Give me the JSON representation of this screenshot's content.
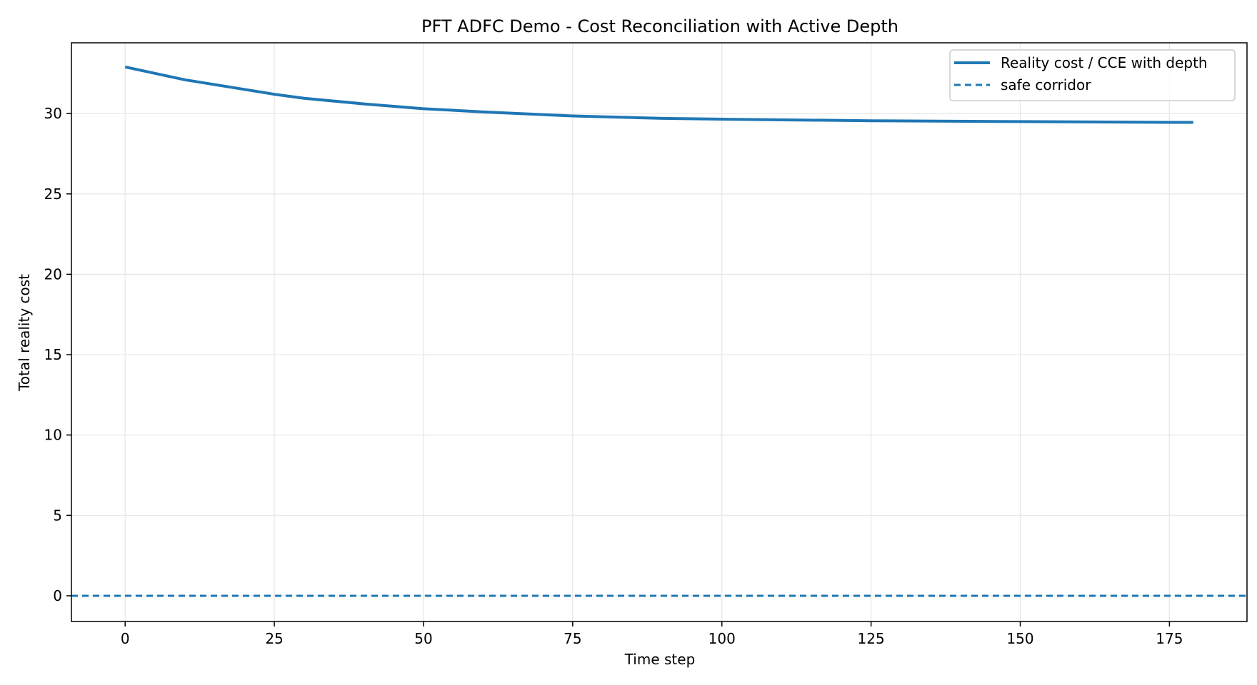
{
  "chart_data": {
    "type": "line",
    "title": "PFT ADFC Demo - Cost Reconciliation with Active Depth",
    "xlabel": "Time step",
    "ylabel": "Total reality cost",
    "xlim": [
      -9,
      188
    ],
    "ylim": [
      -1.6,
      34.4
    ],
    "xticks": [
      0,
      25,
      50,
      75,
      100,
      125,
      150,
      175
    ],
    "yticks": [
      0,
      5,
      10,
      15,
      20,
      25,
      30
    ],
    "grid": true,
    "legend_position": "upper right",
    "series": [
      {
        "name": "Reality cost / CCE with depth",
        "style": "solid",
        "color": "#1f77b4",
        "x": [
          0,
          10,
          20,
          25,
          30,
          40,
          50,
          60,
          75,
          90,
          100,
          125,
          150,
          175,
          179
        ],
        "y": [
          32.9,
          32.1,
          31.5,
          31.2,
          30.95,
          30.6,
          30.3,
          30.1,
          29.85,
          29.7,
          29.65,
          29.55,
          29.5,
          29.45,
          29.45
        ]
      },
      {
        "name": "safe corridor",
        "style": "dashed",
        "color": "#1f77b4",
        "y_constant": 0
      }
    ]
  }
}
